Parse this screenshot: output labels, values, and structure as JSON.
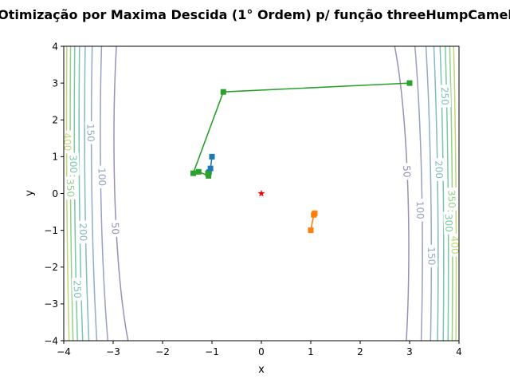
{
  "chart_data": {
    "type": "line",
    "title": "Otimização por Maxima Descida (1° Ordem) p/ função threeHumpCamel",
    "xlabel": "x",
    "ylabel": "y",
    "xlim": [
      -4,
      4
    ],
    "ylim": [
      -4,
      4
    ],
    "xticks": [
      "−4",
      "−3",
      "−2",
      "−1",
      "0",
      "1",
      "2",
      "3",
      "4"
    ],
    "yticks": [
      "−4",
      "−3",
      "−2",
      "−1",
      "0",
      "1",
      "2",
      "3",
      "4"
    ],
    "grid": false,
    "legend": "none",
    "function": "threeHumpCamel",
    "contour_levels": [
      50,
      100,
      150,
      200,
      250,
      300,
      350,
      400
    ],
    "contour_labels": [
      {
        "text": "50",
        "level": 50,
        "x": -2.95,
        "y": -0.95,
        "angle": 88
      },
      {
        "text": "100",
        "level": 100,
        "x": -3.22,
        "y": 0.45,
        "angle": 88
      },
      {
        "text": "150",
        "level": 150,
        "x": -3.45,
        "y": 1.65,
        "angle": 88
      },
      {
        "text": "200",
        "level": 200,
        "x": -3.6,
        "y": -1.05,
        "angle": 88
      },
      {
        "text": "250",
        "level": 250,
        "x": -3.72,
        "y": -2.6,
        "angle": 88
      },
      {
        "text": "300",
        "level": 300,
        "x": -3.8,
        "y": 0.8,
        "angle": 88
      },
      {
        "text": "350",
        "level": 350,
        "x": -3.86,
        "y": 0.15,
        "angle": 88
      },
      {
        "text": "400",
        "level": 400,
        "x": -3.92,
        "y": 1.4,
        "angle": 88
      },
      {
        "text": "50",
        "level": 50,
        "x": 2.95,
        "y": 0.6,
        "angle": 88
      },
      {
        "text": "100",
        "level": 100,
        "x": 3.22,
        "y": -0.45,
        "angle": 88
      },
      {
        "text": "150",
        "level": 150,
        "x": 3.45,
        "y": -1.7,
        "angle": 88
      },
      {
        "text": "200",
        "level": 200,
        "x": 3.6,
        "y": 0.65,
        "angle": 88
      },
      {
        "text": "250",
        "level": 250,
        "x": 3.72,
        "y": 2.65,
        "angle": 88
      },
      {
        "text": "300",
        "level": 300,
        "x": 3.8,
        "y": -0.8,
        "angle": 88
      },
      {
        "text": "350",
        "level": 350,
        "x": 3.86,
        "y": -0.15,
        "angle": 88
      },
      {
        "text": "400",
        "level": 400,
        "x": 3.92,
        "y": -1.4,
        "angle": 88
      }
    ],
    "series": [
      {
        "color": "#1f77b4",
        "marker": "square",
        "x": [
          -1.0,
          -1.03,
          -1.06,
          -1.08,
          -1.08
        ],
        "y": [
          1.0,
          0.68,
          0.58,
          0.55,
          0.54
        ]
      },
      {
        "color": "#ff7f0e",
        "marker": "square",
        "x": [
          1.0,
          1.06,
          1.08,
          1.08,
          1.08
        ],
        "y": [
          -1.0,
          -0.58,
          -0.54,
          -0.54,
          -0.54
        ]
      },
      {
        "color": "#2ca02c",
        "marker": "square",
        "x": [
          3.0,
          -0.77,
          -1.38,
          -1.27,
          -1.07,
          -1.08,
          -1.08
        ],
        "y": [
          3.0,
          2.76,
          0.55,
          0.59,
          0.48,
          0.54,
          0.54
        ]
      }
    ],
    "minimum": {
      "x": 0,
      "y": 0,
      "marker": "star",
      "color": "#ff0000"
    }
  }
}
